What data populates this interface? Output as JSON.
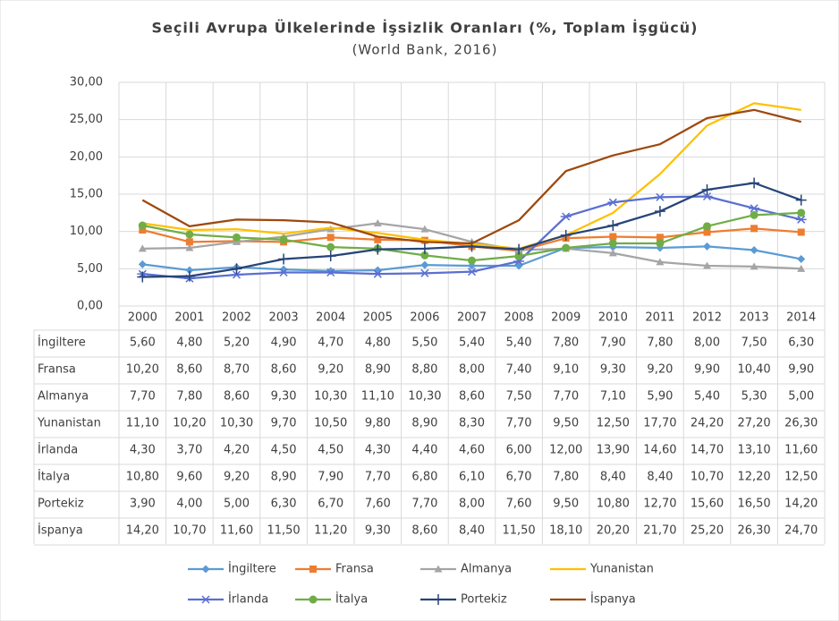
{
  "chart_data": {
    "type": "line",
    "title": "Seçili Avrupa Ülkelerinde İşsizlik Oranları (%, Toplam İşgücü)",
    "subtitle": "(World Bank, 2016)",
    "categories": [
      "2000",
      "2001",
      "2002",
      "2003",
      "2004",
      "2005",
      "2006",
      "2007",
      "2008",
      "2009",
      "2010",
      "2011",
      "2012",
      "2013",
      "2014"
    ],
    "ylim": [
      0,
      30
    ],
    "yticks": [
      {
        "value": 0,
        "label": "0,00"
      },
      {
        "value": 5,
        "label": "5,00"
      },
      {
        "value": 10,
        "label": "10,00"
      },
      {
        "value": 15,
        "label": "15,00"
      },
      {
        "value": 20,
        "label": "20,00"
      },
      {
        "value": 25,
        "label": "25,00"
      },
      {
        "value": 30,
        "label": "30,00"
      }
    ],
    "grid": true,
    "legend": "bottom",
    "series": [
      {
        "name": "İngiltere",
        "color": "#5b9bd5",
        "marker": "diamond",
        "values": [
          5.6,
          4.8,
          5.2,
          4.9,
          4.7,
          4.8,
          5.5,
          5.4,
          5.4,
          7.8,
          7.9,
          7.8,
          8.0,
          7.5,
          6.3
        ],
        "value_labels": [
          "5,60",
          "4,80",
          "5,20",
          "4,90",
          "4,70",
          "4,80",
          "5,50",
          "5,40",
          "5,40",
          "7,80",
          "7,90",
          "7,80",
          "8,00",
          "7,50",
          "6,30"
        ]
      },
      {
        "name": "Fransa",
        "color": "#ed7d31",
        "marker": "square",
        "values": [
          10.2,
          8.6,
          8.7,
          8.6,
          9.2,
          8.9,
          8.8,
          8.0,
          7.4,
          9.1,
          9.3,
          9.2,
          9.9,
          10.4,
          9.9
        ],
        "value_labels": [
          "10,20",
          "8,60",
          "8,70",
          "8,60",
          "9,20",
          "8,90",
          "8,80",
          "8,00",
          "7,40",
          "9,10",
          "9,30",
          "9,20",
          "9,90",
          "10,40",
          "9,90"
        ]
      },
      {
        "name": "Almanya",
        "color": "#a5a5a5",
        "marker": "triangle",
        "values": [
          7.7,
          7.8,
          8.6,
          9.3,
          10.3,
          11.1,
          10.3,
          8.6,
          7.5,
          7.7,
          7.1,
          5.9,
          5.4,
          5.3,
          5.0
        ],
        "value_labels": [
          "7,70",
          "7,80",
          "8,60",
          "9,30",
          "10,30",
          "11,10",
          "10,30",
          "8,60",
          "7,50",
          "7,70",
          "7,10",
          "5,90",
          "5,40",
          "5,30",
          "5,00"
        ]
      },
      {
        "name": "Yunanistan",
        "color": "#ffc000",
        "marker": "none",
        "values": [
          11.1,
          10.2,
          10.3,
          9.7,
          10.5,
          9.8,
          8.9,
          8.3,
          7.7,
          9.5,
          12.5,
          17.7,
          24.2,
          27.2,
          26.3
        ],
        "value_labels": [
          "11,10",
          "10,20",
          "10,30",
          "9,70",
          "10,50",
          "9,80",
          "8,90",
          "8,30",
          "7,70",
          "9,50",
          "12,50",
          "17,70",
          "24,20",
          "27,20",
          "26,30"
        ]
      },
      {
        "name": "İrlanda",
        "color": "#5a6fd1",
        "marker": "star",
        "values": [
          4.3,
          3.7,
          4.2,
          4.5,
          4.5,
          4.3,
          4.4,
          4.6,
          6.0,
          12.0,
          13.9,
          14.6,
          14.7,
          13.1,
          11.6
        ],
        "value_labels": [
          "4,30",
          "3,70",
          "4,20",
          "4,50",
          "4,50",
          "4,30",
          "4,40",
          "4,60",
          "6,00",
          "12,00",
          "13,90",
          "14,60",
          "14,70",
          "13,10",
          "11,60"
        ]
      },
      {
        "name": "İtalya",
        "color": "#70ad47",
        "marker": "circle",
        "values": [
          10.8,
          9.6,
          9.2,
          8.9,
          7.9,
          7.7,
          6.8,
          6.1,
          6.7,
          7.8,
          8.4,
          8.4,
          10.7,
          12.2,
          12.5
        ],
        "value_labels": [
          "10,80",
          "9,60",
          "9,20",
          "8,90",
          "7,90",
          "7,70",
          "6,80",
          "6,10",
          "6,70",
          "7,80",
          "8,40",
          "8,40",
          "10,70",
          "12,20",
          "12,50"
        ]
      },
      {
        "name": "Portekiz",
        "color": "#264478",
        "marker": "plus",
        "values": [
          3.9,
          4.0,
          5.0,
          6.3,
          6.7,
          7.6,
          7.7,
          8.0,
          7.6,
          9.5,
          10.8,
          12.7,
          15.6,
          16.5,
          14.2
        ],
        "value_labels": [
          "3,90",
          "4,00",
          "5,00",
          "6,30",
          "6,70",
          "7,60",
          "7,70",
          "8,00",
          "7,60",
          "9,50",
          "10,80",
          "12,70",
          "15,60",
          "16,50",
          "14,20"
        ]
      },
      {
        "name": "İspanya",
        "color": "#9e480e",
        "marker": "none",
        "values": [
          14.2,
          10.7,
          11.6,
          11.5,
          11.2,
          9.3,
          8.6,
          8.4,
          11.5,
          18.1,
          20.2,
          21.7,
          25.2,
          26.3,
          24.7
        ],
        "value_labels": [
          "14,20",
          "10,70",
          "11,60",
          "11,50",
          "11,20",
          "9,30",
          "8,60",
          "8,40",
          "11,50",
          "18,10",
          "20,20",
          "21,70",
          "25,20",
          "26,30",
          "24,70"
        ]
      }
    ]
  }
}
